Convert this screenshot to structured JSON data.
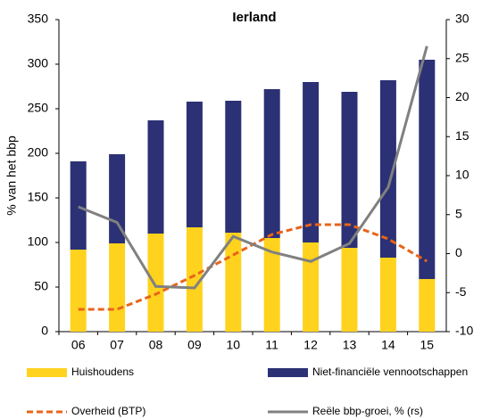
{
  "chart_data": {
    "type": "bar",
    "title": "Ierland",
    "y_label": "% van het bbp",
    "categories": [
      "06",
      "07",
      "08",
      "09",
      "10",
      "11",
      "12",
      "13",
      "14",
      "15"
    ],
    "series": [
      {
        "name": "Huishoudens",
        "type": "bar",
        "color": "#FFD21E",
        "values": [
          92,
          99,
          110,
          117,
          111,
          105,
          100,
          94,
          83,
          59
        ]
      },
      {
        "name": "Niet-financiële vennootschappen",
        "type": "bar",
        "color": "#2B3174",
        "values": [
          99,
          100,
          127,
          141,
          148,
          167,
          180,
          175,
          199,
          246
        ]
      },
      {
        "name": "Overheid (BTP)",
        "type": "line",
        "dashed": true,
        "color": "#E8641A",
        "values": [
          25,
          25,
          42,
          63,
          86,
          109,
          120,
          120,
          104,
          79
        ]
      },
      {
        "name": "Reële bbp-groei, % (rs)",
        "type": "line",
        "axis": "y2",
        "color": "#808080",
        "values": [
          6.0,
          4.0,
          -4.2,
          -4.4,
          2.2,
          0.2,
          -1.0,
          1.3,
          8.5,
          26.6
        ]
      }
    ],
    "ylim": [
      0,
      350
    ],
    "yticks": [
      0,
      50,
      100,
      150,
      200,
      250,
      300,
      350
    ],
    "y2lim": [
      -10,
      30
    ],
    "y2ticks": [
      -10,
      -5,
      0,
      5,
      10,
      15,
      20,
      25,
      30
    ]
  }
}
